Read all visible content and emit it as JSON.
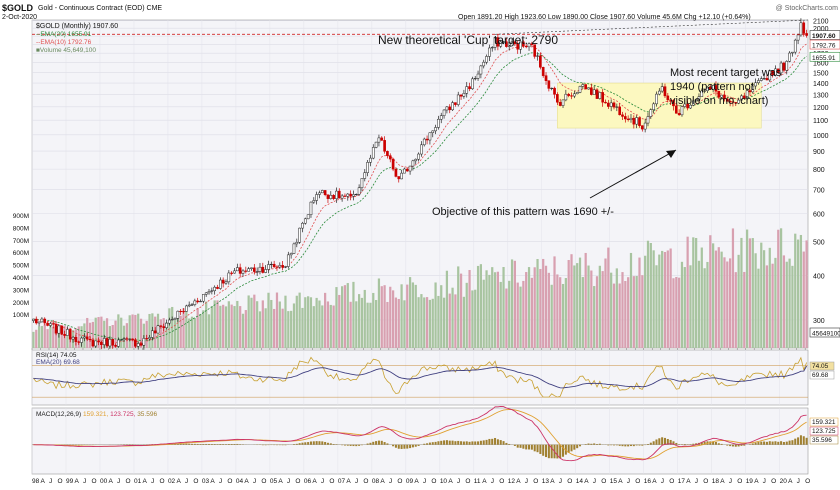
{
  "header": {
    "symbol": "$GOLD",
    "name": "Gold - Continuous Contract (EOD)",
    "exchange": "CME",
    "date": "2-Oct-2020",
    "ohlc": {
      "open_label": "Open",
      "open": "1891.20",
      "high_label": "High",
      "high": "1923.60",
      "low_label": "Low",
      "low": "1890.00",
      "close_label": "Close",
      "close": "1907.60",
      "volume_label": "Volume",
      "volume": "45.6M",
      "chg_label": "Chg",
      "chg": "+12.10 (+0.64%)"
    },
    "watermark": "@ StockCharts.com"
  },
  "legend": {
    "main": "$GOLD (Monthly) 1907.60",
    "ema20": "EMA(20) 1655.91",
    "ema10": "EMA(10) 1792.76",
    "volume": "Volume 45,649,100",
    "rsi": "RSI(14) 74.05",
    "rsi_ema": "EMA(20) 69.68",
    "macd_name": "MACD(12,26,9)",
    "macd_v1": "159.321,",
    "macd_v2": "123.725,",
    "macd_v3": "35.596"
  },
  "annotations": {
    "cup": "New theoretical 'Cup' target: 2790",
    "recent1": "Most recent target was",
    "recent2": "1940 (pattern not",
    "recent3": "visible on mo. chart)",
    "objective": "Objective of this pattern was 1690 +/-"
  },
  "colors": {
    "up": "#222222",
    "down": "#cc0000",
    "ema10": "#e05050",
    "ema20": "#2a8a3a",
    "vol_up": "#a8c4a0",
    "vol_down": "#d8a0b0",
    "rsi": "#c8a030",
    "rsi_ema": "#404080",
    "macd": "#cc3366",
    "macd_signal": "#e0a030",
    "hist": "#a08030",
    "box": "#fcf8c0",
    "target_line": "#cc0000",
    "panel_bg": "#f4f4f8"
  },
  "chart_data": {
    "type": "candlestick",
    "interval": "monthly",
    "price_axis": {
      "ticks": [
        2100,
        2000,
        1900,
        1800,
        1700,
        1600,
        1500,
        1400,
        1300,
        1200,
        1100,
        1000,
        900,
        800,
        700,
        600,
        500,
        400,
        300
      ],
      "ylim": [
        250,
        2110
      ]
    },
    "price_tags": [
      {
        "label": "1907.60",
        "value": 1907.6,
        "kind": "close"
      },
      {
        "label": "1792.76",
        "value": 1792.76,
        "kind": "ema10"
      },
      {
        "label": "1655.91",
        "value": 1655.91,
        "kind": "ema20"
      },
      {
        "label": "45649100",
        "value": 270,
        "kind": "volume"
      }
    ],
    "volume_axis": {
      "ticks": [
        "900M",
        "800M",
        "700M",
        "600M",
        "500M",
        "400M",
        "300M",
        "200M",
        "100M"
      ]
    },
    "rsi_axis": {
      "ticks": [],
      "value_tags": [
        "74.05",
        "69.68"
      ],
      "ylim": [
        20,
        90
      ]
    },
    "macd_axis": {
      "value_tags": [
        "159.321",
        "123.725",
        "35.596"
      ],
      "ylim": [
        -160,
        200
      ]
    },
    "x_axis_labels": [
      "98",
      "A",
      "J",
      "O",
      "99",
      "A",
      "J",
      "O",
      "00",
      "A",
      "J",
      "O",
      "01",
      "A",
      "J",
      "O",
      "02",
      "A",
      "J",
      "O",
      "03",
      "A",
      "J",
      "O",
      "04",
      "A",
      "J",
      "O",
      "05",
      "A",
      "J",
      "O",
      "06",
      "A",
      "J",
      "O",
      "07",
      "A",
      "J",
      "O",
      "08",
      "A",
      "J",
      "O",
      "09",
      "A",
      "J",
      "O",
      "10",
      "A",
      "J",
      "O",
      "11",
      "A",
      "J",
      "O",
      "12",
      "A",
      "J",
      "O",
      "13",
      "A",
      "J",
      "O",
      "14",
      "A",
      "J",
      "O",
      "15",
      "A",
      "J",
      "O",
      "16",
      "A",
      "J",
      "O",
      "17",
      "A",
      "J",
      "O",
      "18",
      "A",
      "J",
      "O",
      "19",
      "A",
      "J",
      "O",
      "20",
      "A",
      "J",
      "O"
    ],
    "price_keypoints": [
      {
        "date": "1998-01",
        "value": 300
      },
      {
        "date": "1999-08",
        "value": 260
      },
      {
        "date": "2001-03",
        "value": 260
      },
      {
        "date": "2002-06",
        "value": 320
      },
      {
        "date": "2003-12",
        "value": 410
      },
      {
        "date": "2005-06",
        "value": 430
      },
      {
        "date": "2006-05",
        "value": 690
      },
      {
        "date": "2007-06",
        "value": 660
      },
      {
        "date": "2008-03",
        "value": 980
      },
      {
        "date": "2008-10",
        "value": 740
      },
      {
        "date": "2009-12",
        "value": 1100
      },
      {
        "date": "2010-12",
        "value": 1410
      },
      {
        "date": "2011-08",
        "value": 1830
      },
      {
        "date": "2012-09",
        "value": 1770
      },
      {
        "date": "2013-06",
        "value": 1230
      },
      {
        "date": "2014-03",
        "value": 1380
      },
      {
        "date": "2015-12",
        "value": 1060
      },
      {
        "date": "2016-07",
        "value": 1360
      },
      {
        "date": "2016-12",
        "value": 1150
      },
      {
        "date": "2017-09",
        "value": 1320
      },
      {
        "date": "2018-01",
        "value": 1350
      },
      {
        "date": "2018-08",
        "value": 1200
      },
      {
        "date": "2019-06",
        "value": 1410
      },
      {
        "date": "2019-09",
        "value": 1500
      },
      {
        "date": "2020-03",
        "value": 1580
      },
      {
        "date": "2020-08",
        "value": 2070
      },
      {
        "date": "2020-10",
        "value": 1907.6
      }
    ],
    "consolidation_box": {
      "start": "2013-06",
      "end": "2019-06",
      "low": 1045,
      "high": 1400
    },
    "target_line_level": 1923,
    "cup_target_line": {
      "start": "2011-08",
      "start_value": 1923,
      "end": "2020-10",
      "end_value": 2110
    }
  }
}
